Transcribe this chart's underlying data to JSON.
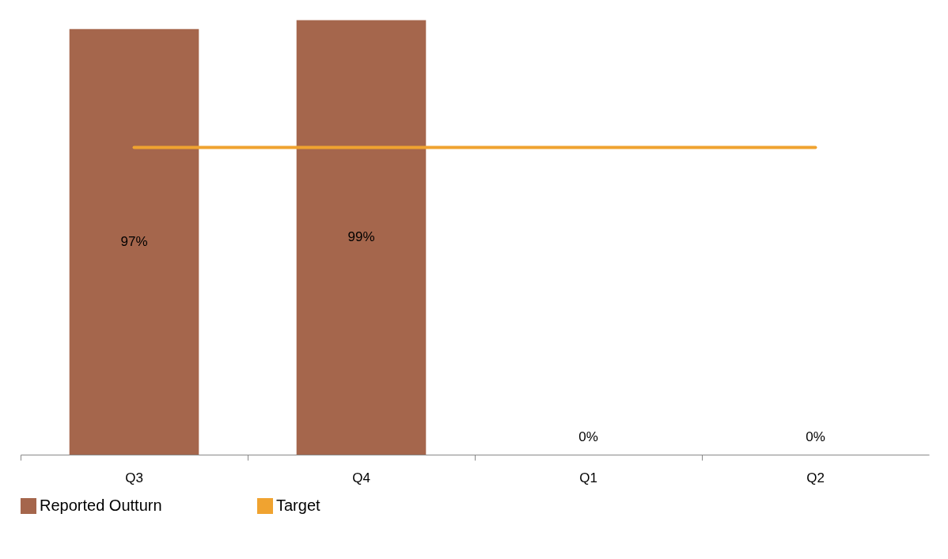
{
  "chart_data": {
    "type": "bar",
    "categories": [
      "Q3",
      "Q4",
      "Q1",
      "Q2"
    ],
    "series": [
      {
        "name": "Reported Outturn",
        "color": "#a5664c",
        "values": [
          97,
          99,
          0,
          0
        ],
        "value_labels": [
          "97%",
          "99%",
          "0%",
          "0%"
        ]
      },
      {
        "name": "Target",
        "type": "line",
        "color": "#f0a330",
        "values": [
          70,
          70,
          70,
          70
        ]
      }
    ],
    "legend": "bottom",
    "grid": false
  }
}
